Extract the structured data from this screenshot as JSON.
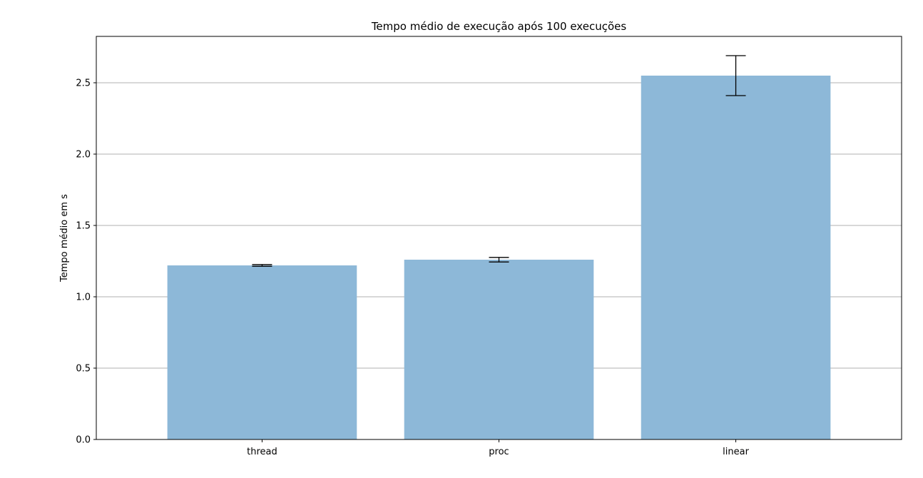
{
  "chart_data": {
    "type": "bar",
    "title": "Tempo médio de execução após 100 execuções",
    "xlabel": "",
    "ylabel": "Tempo médio em s",
    "categories": [
      "thread",
      "proc",
      "linear"
    ],
    "values": [
      1.22,
      1.26,
      2.55
    ],
    "errors": [
      0.006,
      0.016,
      0.14
    ],
    "ylim": [
      0,
      2.825
    ],
    "yticks": [
      "0.0",
      "0.5",
      "1.0",
      "1.5",
      "2.0",
      "2.5"
    ],
    "grid": "y",
    "bar_color": "#8db8d8"
  }
}
